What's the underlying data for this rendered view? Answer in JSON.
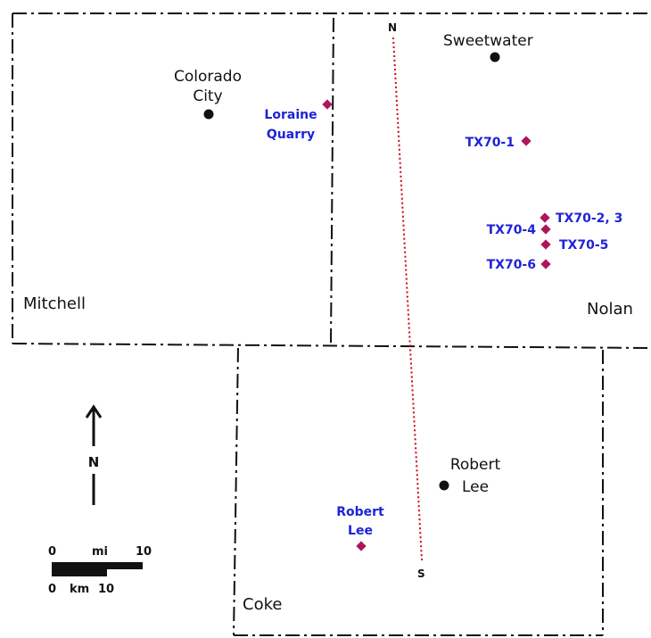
{
  "counties": {
    "mitchell": "Mitchell",
    "nolan": "Nolan",
    "coke": "Coke"
  },
  "cities": {
    "sweetwater": "Sweetwater",
    "colorado_city": [
      "Colorado",
      "City"
    ],
    "robert_lee": [
      "Robert",
      "Lee"
    ]
  },
  "sites": {
    "loraine_quarry": [
      "Loraine",
      "Quarry"
    ],
    "tx70_1": "TX70-1",
    "tx70_2_3": "TX70-2, 3",
    "tx70_4": "TX70-4",
    "tx70_5": "TX70-5",
    "tx70_6": "TX70-6",
    "robert_lee_site": [
      "Robert",
      "Lee"
    ]
  },
  "transect": {
    "north_end": "N",
    "south_end": "S"
  },
  "north_arrow": {
    "label": "N"
  },
  "scale_bar": {
    "mi_zero": "0",
    "mi_unit": "mi",
    "mi_max": "10",
    "km_zero": "0",
    "km_unit": "km",
    "km_max": "10"
  },
  "colors": {
    "site_marker": "#b0155a",
    "site_label": "#1f23d6",
    "transect_line": "#d0021b",
    "boundary": "#111111"
  }
}
